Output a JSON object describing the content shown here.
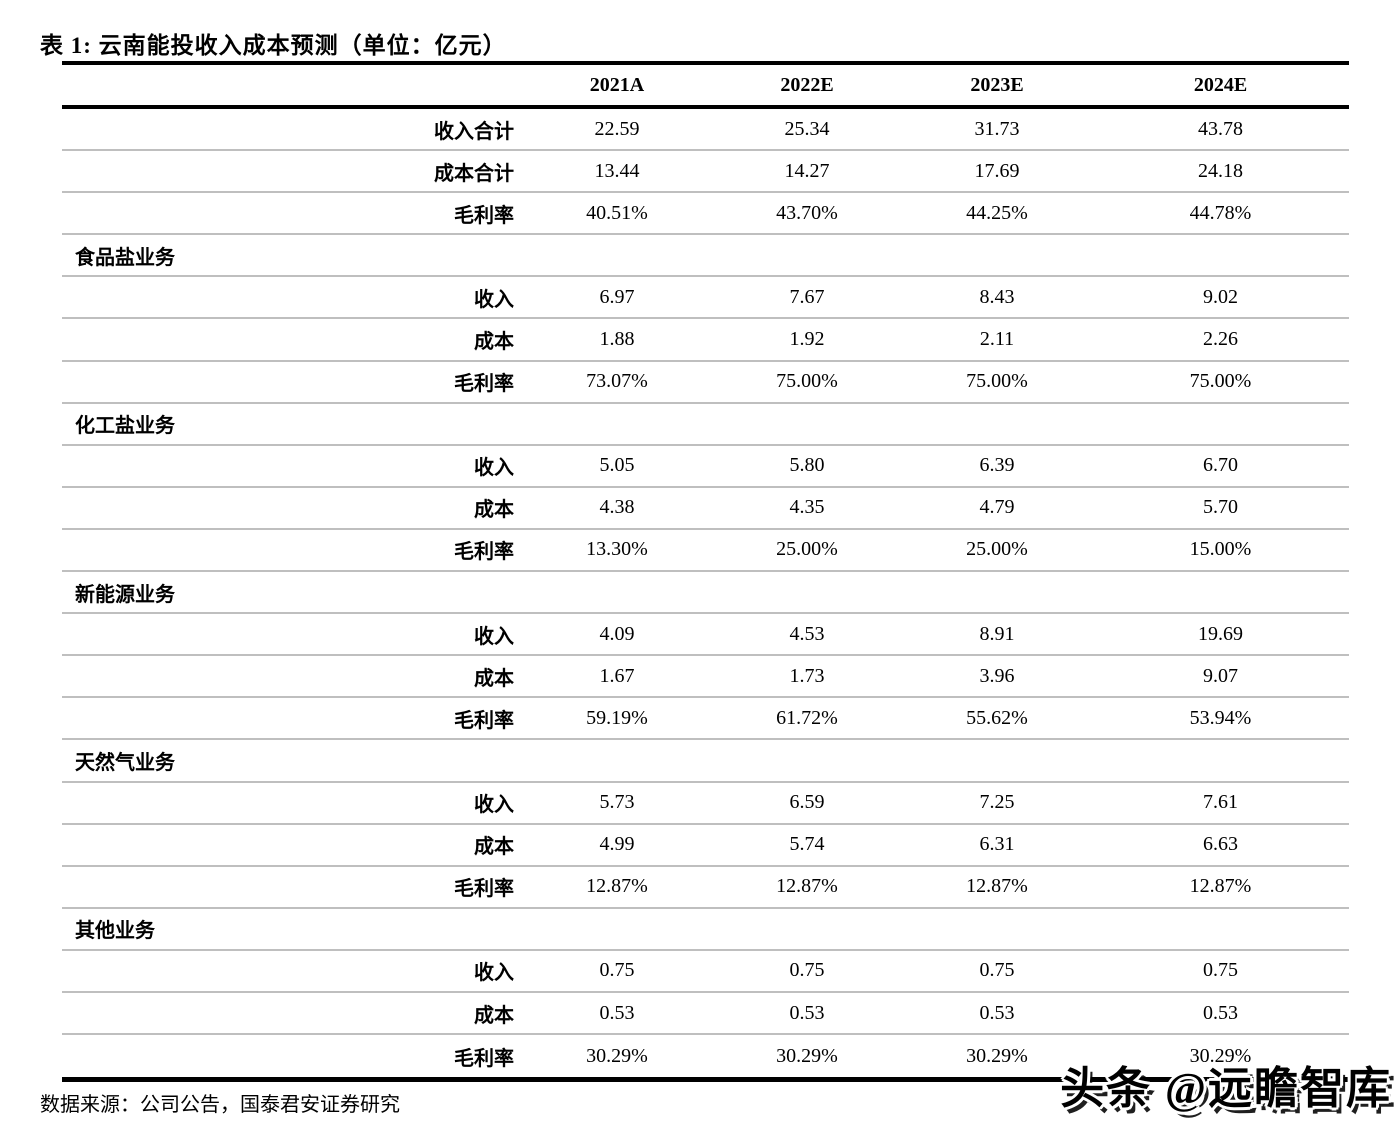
{
  "title": "表 1:  云南能投收入成本预测（单位：亿元）",
  "columns": [
    "2021A",
    "2022E",
    "2023E",
    "2024E"
  ],
  "summary_rows": [
    {
      "label": "收入合计",
      "values": [
        "22.59",
        "25.34",
        "31.73",
        "43.78"
      ]
    },
    {
      "label": "成本合计",
      "values": [
        "13.44",
        "14.27",
        "17.69",
        "24.18"
      ]
    },
    {
      "label": "毛利率",
      "values": [
        "40.51%",
        "43.70%",
        "44.25%",
        "44.78%"
      ]
    }
  ],
  "sections": [
    {
      "name": "食品盐业务",
      "rows": [
        {
          "label": "收入",
          "values": [
            "6.97",
            "7.67",
            "8.43",
            "9.02"
          ]
        },
        {
          "label": "成本",
          "values": [
            "1.88",
            "1.92",
            "2.11",
            "2.26"
          ]
        },
        {
          "label": "毛利率",
          "values": [
            "73.07%",
            "75.00%",
            "75.00%",
            "75.00%"
          ]
        }
      ]
    },
    {
      "name": "化工盐业务",
      "rows": [
        {
          "label": "收入",
          "values": [
            "5.05",
            "5.80",
            "6.39",
            "6.70"
          ]
        },
        {
          "label": "成本",
          "values": [
            "4.38",
            "4.35",
            "4.79",
            "5.70"
          ]
        },
        {
          "label": "毛利率",
          "values": [
            "13.30%",
            "25.00%",
            "25.00%",
            "15.00%"
          ]
        }
      ]
    },
    {
      "name": "新能源业务",
      "rows": [
        {
          "label": "收入",
          "values": [
            "4.09",
            "4.53",
            "8.91",
            "19.69"
          ]
        },
        {
          "label": "成本",
          "values": [
            "1.67",
            "1.73",
            "3.96",
            "9.07"
          ]
        },
        {
          "label": "毛利率",
          "values": [
            "59.19%",
            "61.72%",
            "55.62%",
            "53.94%"
          ]
        }
      ]
    },
    {
      "name": "天然气业务",
      "rows": [
        {
          "label": "收入",
          "values": [
            "5.73",
            "6.59",
            "7.25",
            "7.61"
          ]
        },
        {
          "label": "成本",
          "values": [
            "4.99",
            "5.74",
            "6.31",
            "6.63"
          ]
        },
        {
          "label": "毛利率",
          "values": [
            "12.87%",
            "12.87%",
            "12.87%",
            "12.87%"
          ]
        }
      ]
    },
    {
      "name": "其他业务",
      "rows": [
        {
          "label": "收入",
          "values": [
            "0.75",
            "0.75",
            "0.75",
            "0.75"
          ]
        },
        {
          "label": "成本",
          "values": [
            "0.53",
            "0.53",
            "0.53",
            "0.53"
          ]
        },
        {
          "label": "毛利率",
          "values": [
            "30.29%",
            "30.29%",
            "30.29%",
            "30.29%"
          ]
        }
      ]
    }
  ],
  "footer": {
    "source": "数据来源：公司公告，国泰君安证券研究"
  },
  "watermark": {
    "text": "头条 @远瞻智库"
  },
  "colors": {
    "separator": "#bfbfbf",
    "rule": "#000000",
    "text": "#000000",
    "background": "#ffffff"
  },
  "chart_data": {
    "type": "table",
    "title": "云南能投收入成本预测（单位：亿元）",
    "categories": [
      "2021A",
      "2022E",
      "2023E",
      "2024E"
    ],
    "series": [
      {
        "name": "收入合计",
        "values": [
          22.59,
          25.34,
          31.73,
          43.78
        ]
      },
      {
        "name": "成本合计",
        "values": [
          13.44,
          14.27,
          17.69,
          24.18
        ]
      },
      {
        "name": "毛利率",
        "values": [
          "40.51%",
          "43.70%",
          "44.25%",
          "44.78%"
        ]
      },
      {
        "name": "食品盐业务-收入",
        "values": [
          6.97,
          7.67,
          8.43,
          9.02
        ]
      },
      {
        "name": "食品盐业务-成本",
        "values": [
          1.88,
          1.92,
          2.11,
          2.26
        ]
      },
      {
        "name": "食品盐业务-毛利率",
        "values": [
          "73.07%",
          "75.00%",
          "75.00%",
          "75.00%"
        ]
      },
      {
        "name": "化工盐业务-收入",
        "values": [
          5.05,
          5.8,
          6.39,
          6.7
        ]
      },
      {
        "name": "化工盐业务-成本",
        "values": [
          4.38,
          4.35,
          4.79,
          5.7
        ]
      },
      {
        "name": "化工盐业务-毛利率",
        "values": [
          "13.30%",
          "25.00%",
          "25.00%",
          "15.00%"
        ]
      },
      {
        "name": "新能源业务-收入",
        "values": [
          4.09,
          4.53,
          8.91,
          19.69
        ]
      },
      {
        "name": "新能源业务-成本",
        "values": [
          1.67,
          1.73,
          3.96,
          9.07
        ]
      },
      {
        "name": "新能源业务-毛利率",
        "values": [
          "59.19%",
          "61.72%",
          "55.62%",
          "53.94%"
        ]
      },
      {
        "name": "天然气业务-收入",
        "values": [
          5.73,
          6.59,
          7.25,
          7.61
        ]
      },
      {
        "name": "天然气业务-成本",
        "values": [
          4.99,
          5.74,
          6.31,
          6.63
        ]
      },
      {
        "name": "天然气业务-毛利率",
        "values": [
          "12.87%",
          "12.87%",
          "12.87%",
          "12.87%"
        ]
      },
      {
        "name": "其他业务-收入",
        "values": [
          0.75,
          0.75,
          0.75,
          0.75
        ]
      },
      {
        "name": "其他业务-成本",
        "values": [
          0.53,
          0.53,
          0.53,
          0.53
        ]
      },
      {
        "name": "其他业务-毛利率",
        "values": [
          "30.29%",
          "30.29%",
          "30.29%",
          "30.29%"
        ]
      }
    ]
  }
}
